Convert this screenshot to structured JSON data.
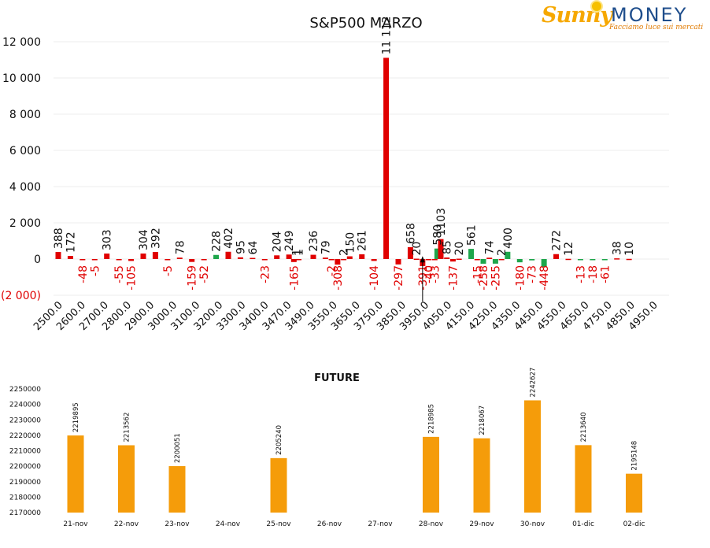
{
  "logo": {
    "brand_a": "Sunny",
    "brand_b": "MONEY",
    "tagline": "Facciamo luce sui mercati"
  },
  "colors": {
    "positive": "#e00000",
    "negative": "#1ea64b",
    "negative_label": "#e00000",
    "future_bar": "#f59c0a"
  },
  "chart_data": [
    {
      "type": "bar",
      "title": "S&P500 MARZO",
      "y_ticks": [
        "12 000",
        "10 000",
        "8 000",
        "6 000",
        "4 000",
        "2 000",
        "0",
        "(2 000)"
      ],
      "ylim": [
        -2000,
        12000
      ],
      "grid": true,
      "x_tick_labels": [
        "2500.0",
        "2600.0",
        "2700.0",
        "2800.0",
        "2900.0",
        "3000.0",
        "3100.0",
        "3200.0",
        "3300.0",
        "3400.0",
        "3470.0",
        "3490.0",
        "3550.0",
        "3650.0",
        "3750.0",
        "3850.0",
        "3950.0",
        "4050.0",
        "4150.0",
        "4250.0",
        "4350.0",
        "4450.0",
        "4550.0",
        "4650.0",
        "4750.0",
        "4850.0",
        "4950.0"
      ],
      "bars": [
        {
          "x": 2500,
          "value": 388,
          "color": "red",
          "label": "388"
        },
        {
          "x": 2550,
          "value": 172,
          "color": "red",
          "label": "172"
        },
        {
          "x": 2600,
          "value": -48,
          "color": "red",
          "label": "-48"
        },
        {
          "x": 2650,
          "value": -5,
          "color": "red",
          "label": "-5"
        },
        {
          "x": 2700,
          "value": 303,
          "color": "red",
          "label": "303"
        },
        {
          "x": 2750,
          "value": -55,
          "color": "red",
          "label": "-55"
        },
        {
          "x": 2800,
          "value": -105,
          "color": "red",
          "label": "-105"
        },
        {
          "x": 2850,
          "value": 304,
          "color": "red",
          "label": "304"
        },
        {
          "x": 2900,
          "value": 392,
          "color": "red",
          "label": "392"
        },
        {
          "x": 2950,
          "value": -5,
          "color": "red",
          "label": "-5"
        },
        {
          "x": 3000,
          "value": 78,
          "color": "red",
          "label": "78"
        },
        {
          "x": 3050,
          "value": -159,
          "color": "red",
          "label": "-159"
        },
        {
          "x": 3100,
          "value": -52,
          "color": "red",
          "label": "-52"
        },
        {
          "x": 3150,
          "value": 228,
          "color": "green",
          "label": "228"
        },
        {
          "x": 3200,
          "value": 402,
          "color": "red",
          "label": "402"
        },
        {
          "x": 3250,
          "value": 95,
          "color": "red",
          "label": "95"
        },
        {
          "x": 3300,
          "value": 64,
          "color": "red",
          "label": "64"
        },
        {
          "x": 3350,
          "value": -23,
          "color": "red",
          "label": "-23"
        },
        {
          "x": 3400,
          "value": 204,
          "color": "red",
          "label": "204"
        },
        {
          "x": 3450,
          "value": 249,
          "color": "red",
          "label": "249"
        },
        {
          "x": 3470,
          "value": -165,
          "color": "red",
          "label": "-165"
        },
        {
          "x": 3480,
          "value": 1,
          "color": "red",
          "label": "1"
        },
        {
          "x": 3490,
          "value": 1,
          "color": "red",
          "label": "1"
        },
        {
          "x": 3550,
          "value": 236,
          "color": "red",
          "label": "236"
        },
        {
          "x": 3600,
          "value": 79,
          "color": "red",
          "label": "79"
        },
        {
          "x": 3625,
          "value": -2,
          "color": "red",
          "label": "-2"
        },
        {
          "x": 3650,
          "value": -308,
          "color": "red",
          "label": "-308"
        },
        {
          "x": 3675,
          "value": 2,
          "color": "red",
          "label": "2"
        },
        {
          "x": 3700,
          "value": 150,
          "color": "red",
          "label": "150"
        },
        {
          "x": 3750,
          "value": 261,
          "color": "red",
          "label": "261"
        },
        {
          "x": 3800,
          "value": -104,
          "color": "red",
          "label": "-104"
        },
        {
          "x": 3850,
          "value": 11112,
          "color": "red",
          "label": "11 112"
        },
        {
          "x": 3900,
          "value": -297,
          "color": "red",
          "label": "-297"
        },
        {
          "x": 3950,
          "value": 658,
          "color": "red",
          "label": "658"
        },
        {
          "x": 3975,
          "value": 20,
          "color": "red",
          "label": "20"
        },
        {
          "x": 4000,
          "value": -391,
          "color": "red",
          "label": "-391"
        },
        {
          "x": 4025,
          "value": -40,
          "color": "red",
          "label": "-40"
        },
        {
          "x": 4050,
          "value": -33,
          "color": "red",
          "label": "-33"
        },
        {
          "x": 4060,
          "value": 580,
          "color": "green",
          "label": "580"
        },
        {
          "x": 4075,
          "value": 1103,
          "color": "red",
          "label": "1103"
        },
        {
          "x": 4100,
          "value": 85,
          "color": "red",
          "label": "85"
        },
        {
          "x": 4125,
          "value": -137,
          "color": "red",
          "label": "-137"
        },
        {
          "x": 4150,
          "value": 20,
          "color": "red",
          "label": "20"
        },
        {
          "x": 4200,
          "value": 561,
          "color": "green",
          "label": "561"
        },
        {
          "x": 4225,
          "value": -15,
          "color": "red",
          "label": "-15"
        },
        {
          "x": 4250,
          "value": -258,
          "color": "green",
          "label": "-258"
        },
        {
          "x": 4275,
          "value": 74,
          "color": "red",
          "label": "74"
        },
        {
          "x": 4300,
          "value": -255,
          "color": "green",
          "label": "-255"
        },
        {
          "x": 4325,
          "value": 2,
          "color": "red",
          "label": "2"
        },
        {
          "x": 4350,
          "value": 400,
          "color": "green",
          "label": "400"
        },
        {
          "x": 4400,
          "value": -180,
          "color": "green",
          "label": "-180"
        },
        {
          "x": 4450,
          "value": -73,
          "color": "green",
          "label": "-73"
        },
        {
          "x": 4500,
          "value": -448,
          "color": "green",
          "label": "-448"
        },
        {
          "x": 4550,
          "value": 272,
          "color": "red",
          "label": "272"
        },
        {
          "x": 4600,
          "value": 12,
          "color": "red",
          "label": "12"
        },
        {
          "x": 4650,
          "value": -13,
          "color": "green",
          "label": "-13"
        },
        {
          "x": 4700,
          "value": -18,
          "color": "green",
          "label": "-18"
        },
        {
          "x": 4750,
          "value": -61,
          "color": "green",
          "label": "-61"
        },
        {
          "x": 4800,
          "value": 38,
          "color": "red",
          "label": "38"
        },
        {
          "x": 4850,
          "value": 10,
          "color": "red",
          "label": "10"
        }
      ],
      "marker": {
        "x": 4000,
        "shape": "arrow-up"
      }
    },
    {
      "type": "bar",
      "title": "FUTURE",
      "categories": [
        "21-nov",
        "22-nov",
        "23-nov",
        "24-nov",
        "25-nov",
        "26-nov",
        "27-nov",
        "28-nov",
        "29-nov",
        "30-nov",
        "01-dic",
        "02-dic"
      ],
      "values": [
        2219895,
        2213562,
        2200051,
        null,
        2205240,
        null,
        null,
        2218985,
        2218067,
        2242627,
        2213640,
        2195148
      ],
      "y_ticks": [
        "2250000",
        "2240000",
        "2230000",
        "2220000",
        "2210000",
        "2200000",
        "2190000",
        "2180000",
        "2170000"
      ],
      "ylim": [
        2170000,
        2250000
      ],
      "grid": false
    }
  ]
}
